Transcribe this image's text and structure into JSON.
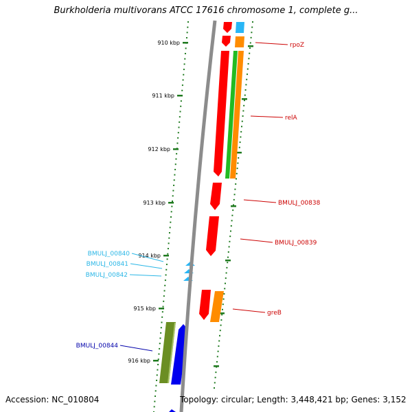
{
  "title": "Burkholderia multivorans ATCC 17616 chromosome 1, complete g...",
  "footer": {
    "accession": "Accession: NC_010804",
    "summary": "Topology: circular; Length: 3,448,421 bp; Genes: 3,152"
  },
  "ticks": [
    {
      "label": "910 kbp"
    },
    {
      "label": "911 kbp"
    },
    {
      "label": "912 kbp"
    },
    {
      "label": "913 kbp"
    },
    {
      "label": "914 kbp"
    },
    {
      "label": "915 kbp"
    },
    {
      "label": "916 kbp"
    }
  ],
  "colors": {
    "backbone": "#8c8c8c",
    "tick_green": "#1f7a1f",
    "gene_red": "#ff0000",
    "cds_orange": "#ff8c00",
    "gene_green": "#22bb22",
    "trna_cyan": "#29b6f6",
    "gene_olive": "#6b8e23",
    "gene_blue": "#0000ee",
    "label_red": "#cc0000",
    "label_cyan": "#29b6e6",
    "label_blue": "#0000aa"
  },
  "gene_labels": [
    {
      "text": "rpoZ"
    },
    {
      "text": "relA"
    },
    {
      "text": "BMULJ_00838"
    },
    {
      "text": "BMULJ_00839"
    },
    {
      "text": "BMULJ_00840"
    },
    {
      "text": "BMULJ_00841"
    },
    {
      "text": "BMULJ_00842"
    },
    {
      "text": "greB"
    },
    {
      "text": "BMULJ_00844"
    }
  ]
}
